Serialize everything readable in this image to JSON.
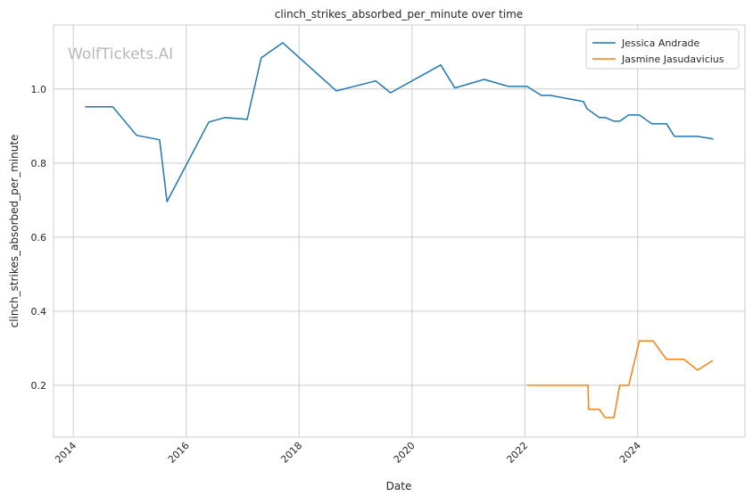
{
  "chart_data": {
    "type": "line",
    "title": "clinch_strikes_absorbed_per_minute over time",
    "xlabel": "Date",
    "ylabel": "clinch_strikes_absorbed_per_minute",
    "xlim": [
      2013.65,
      2025.9
    ],
    "ylim": [
      0.06,
      1.173
    ],
    "x_ticks": [
      2014,
      2016,
      2018,
      2020,
      2022,
      2024
    ],
    "x_tick_labels": [
      "2014",
      "2016",
      "2018",
      "2020",
      "2022",
      "2024"
    ],
    "y_ticks": [
      0.2,
      0.4,
      0.6,
      0.8,
      1.0
    ],
    "y_tick_labels": [
      "0.2",
      "0.4",
      "0.6",
      "0.8",
      "1.0"
    ],
    "grid": true,
    "legend_position": "top-right",
    "watermark": "WolfTickets.AI",
    "series": [
      {
        "name": "Jessica Andrade",
        "color": "#1f77b4",
        "x": [
          2014.21,
          2014.7,
          2015.12,
          2015.53,
          2015.66,
          2016.4,
          2016.69,
          2017.08,
          2017.33,
          2017.71,
          2018.66,
          2019.36,
          2019.62,
          2020.51,
          2020.76,
          2021.28,
          2021.71,
          2022.04,
          2022.29,
          2022.45,
          2023.04,
          2023.1,
          2023.32,
          2023.43,
          2023.58,
          2023.68,
          2023.84,
          2024.03,
          2024.25,
          2024.51,
          2024.65,
          2025.06,
          2025.34
        ],
        "y": [
          0.952,
          0.952,
          0.875,
          0.863,
          0.696,
          0.911,
          0.923,
          0.918,
          1.084,
          1.125,
          0.995,
          1.022,
          0.99,
          1.065,
          1.003,
          1.026,
          1.007,
          1.007,
          0.983,
          0.983,
          0.966,
          0.947,
          0.923,
          0.923,
          0.913,
          0.913,
          0.93,
          0.93,
          0.906,
          0.906,
          0.872,
          0.872,
          0.865
        ]
      },
      {
        "name": "Jasmine Jasudavicius",
        "color": "#ff7f0e",
        "x": [
          2022.04,
          2023.12,
          2023.13,
          2023.32,
          2023.42,
          2023.58,
          2023.68,
          2023.84,
          2024.03,
          2024.27,
          2024.51,
          2024.82,
          2025.06,
          2025.33
        ],
        "y": [
          0.2,
          0.2,
          0.135,
          0.135,
          0.113,
          0.113,
          0.2,
          0.2,
          0.32,
          0.32,
          0.27,
          0.27,
          0.241,
          0.267
        ]
      }
    ]
  }
}
